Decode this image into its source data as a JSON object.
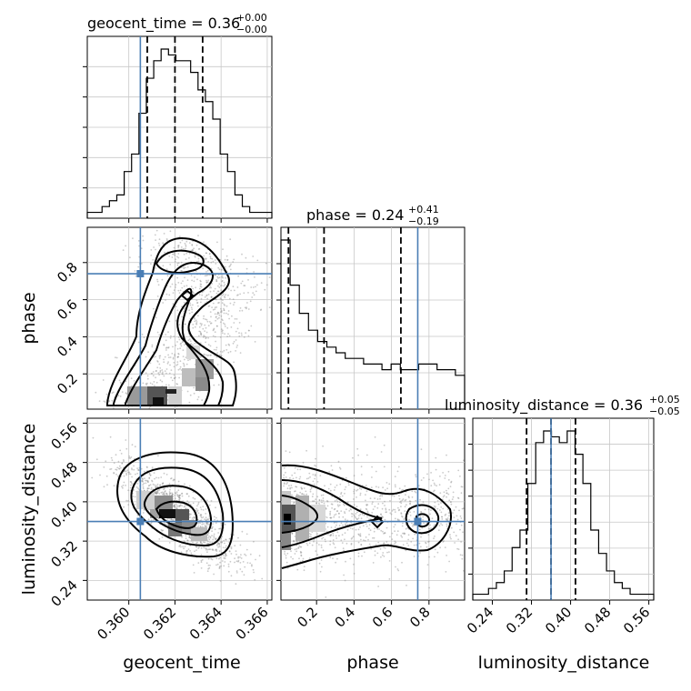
{
  "chart_data": {
    "type": "corner",
    "parameters": [
      "geocent_time",
      "phase",
      "luminosity_distance"
    ],
    "truths": {
      "geocent_time": 0.3605,
      "phase": 0.74,
      "luminosity_distance": 0.36
    },
    "titles": {
      "geocent_time": {
        "prefix": "geocent_time = 0.36",
        "plus": "+0.00",
        "minus": "−0.00"
      },
      "phase": {
        "prefix": "phase = 0.24",
        "plus": "+0.41",
        "minus": "−0.19"
      },
      "luminosity_distance": {
        "prefix": "luminosity_distance = 0.36",
        "plus": "+0.05",
        "minus": "−0.05"
      }
    },
    "ranges": {
      "geocent_time": [
        0.3582,
        0.3662
      ],
      "phase": [
        0.01,
        0.99
      ],
      "luminosity_distance": [
        0.2,
        0.57
      ]
    },
    "ticks": {
      "geocent_time": [
        "0.360",
        "0.362",
        "0.364",
        "0.366"
      ],
      "phase": [
        "0.2",
        "0.4",
        "0.6",
        "0.8"
      ],
      "luminosity_distance": [
        "0.24",
        "0.32",
        "0.40",
        "0.48",
        "0.56"
      ]
    },
    "axis_labels": {
      "x": [
        "geocent_time",
        "phase",
        "luminosity_distance"
      ],
      "y": [
        "phase",
        "luminosity_distance"
      ]
    },
    "quantiles": {
      "geocent_time": [
        0.3608,
        0.362,
        0.3632
      ],
      "phase": [
        0.05,
        0.24,
        0.65
      ],
      "luminosity_distance": [
        0.31,
        0.36,
        0.41
      ]
    },
    "histograms": {
      "geocent_time": [
        1,
        1,
        2,
        3,
        4,
        8,
        11,
        18,
        24,
        27,
        29,
        28,
        27,
        27,
        25,
        22,
        20,
        17,
        11,
        8,
        4,
        2,
        1,
        1,
        1
      ],
      "phase": [
        30,
        22,
        17,
        14,
        12,
        11,
        10,
        9,
        9,
        8,
        8,
        7,
        8,
        7,
        7,
        8,
        8,
        7,
        7,
        6
      ],
      "luminosity_distance": [
        1,
        1,
        2,
        3,
        5,
        9,
        12,
        20,
        27,
        29,
        28,
        27,
        29,
        25,
        20,
        12,
        8,
        5,
        3,
        2,
        1,
        1,
        1
      ]
    },
    "grid": true
  }
}
